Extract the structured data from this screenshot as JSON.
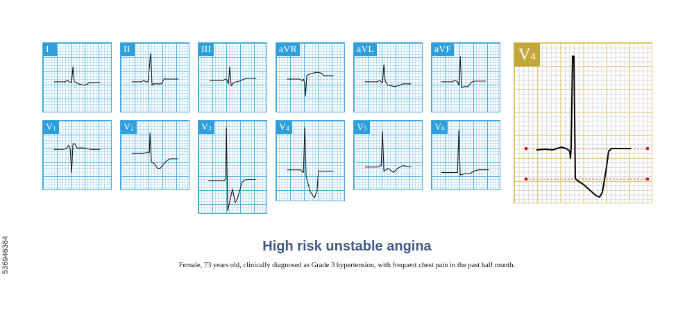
{
  "leads_row1": [
    {
      "label": "I",
      "sub": ""
    },
    {
      "label": "II",
      "sub": ""
    },
    {
      "label": "III",
      "sub": ""
    },
    {
      "label": "aVR",
      "sub": ""
    },
    {
      "label": "aVL",
      "sub": ""
    },
    {
      "label": "aVF",
      "sub": ""
    }
  ],
  "leads_row2": [
    {
      "label": "V",
      "sub": "1"
    },
    {
      "label": "V",
      "sub": "2"
    },
    {
      "label": "V",
      "sub": "3"
    },
    {
      "label": "V",
      "sub": "4"
    },
    {
      "label": "V",
      "sub": "5"
    },
    {
      "label": "V",
      "sub": "6"
    }
  ],
  "enlarged": {
    "label": "V",
    "sub": "4"
  },
  "title": "High risk unstable angina",
  "caption": "Female, 73 years old, clinically diagnosed as Grade 3 hypertension, with frequent chest pain in the past half month.",
  "watermark_id": "536946364",
  "colors": {
    "grid_blue": "#4aaee3",
    "label_blue": "#2f9fdb",
    "grid_gold": "#dcc866",
    "label_gold": "#c2a83a",
    "reference_line": "#e05060",
    "title": "#3f5a84"
  }
}
